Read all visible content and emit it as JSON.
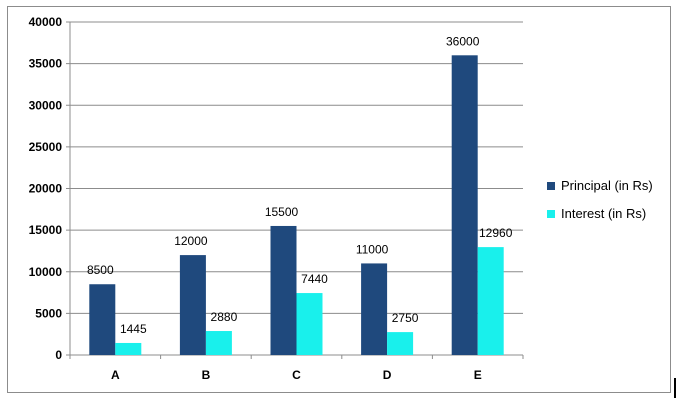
{
  "chart_data": {
    "type": "bar",
    "title": "",
    "xlabel": "",
    "ylabel": "",
    "categories": [
      "A",
      "B",
      "C",
      "D",
      "E"
    ],
    "series": [
      {
        "name": "Principal (in Rs)",
        "values": [
          8500,
          12000,
          15500,
          11000,
          36000
        ],
        "color": "#1f497d"
      },
      {
        "name": "Interest (in Rs)",
        "values": [
          1445,
          2880,
          7440,
          2750,
          12960
        ],
        "color": "#19f0ec"
      }
    ],
    "ylim": [
      0,
      40000
    ],
    "yticks": [
      "0",
      "5000",
      "10000",
      "15000",
      "20000",
      "25000",
      "30000",
      "35000",
      "40000"
    ],
    "grid": true,
    "legend_position": "right"
  }
}
